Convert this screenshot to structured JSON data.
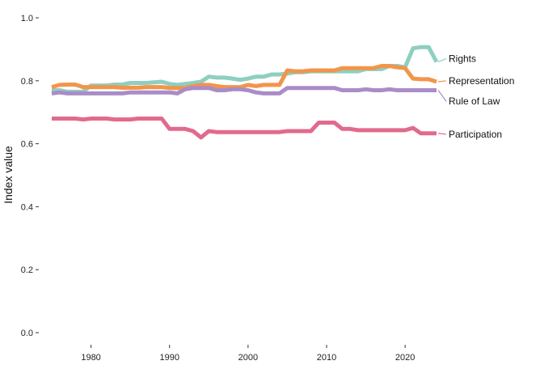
{
  "chart_data": {
    "type": "line",
    "ylabel": "Index value",
    "xlabel": "",
    "xlim": [
      1975,
      2024
    ],
    "ylim": [
      0,
      1
    ],
    "x_ticks": [
      1980,
      1990,
      2000,
      2010,
      2020
    ],
    "x_tick_labels": [
      "1980",
      "1990",
      "2000",
      "2010",
      "2020"
    ],
    "y_ticks": [
      0,
      0.2,
      0.4,
      0.6,
      0.8,
      1.0
    ],
    "y_tick_labels": [
      "0.0",
      "0.2",
      "0.4",
      "0.6",
      "0.8",
      "1.0"
    ],
    "grid": false,
    "legend": "direct labels at line ends (right)",
    "x": [
      1975,
      1976,
      1977,
      1978,
      1979,
      1980,
      1981,
      1982,
      1983,
      1984,
      1985,
      1986,
      1987,
      1988,
      1989,
      1990,
      1991,
      1992,
      1993,
      1994,
      1995,
      1996,
      1997,
      1998,
      1999,
      2000,
      2001,
      2002,
      2003,
      2004,
      2005,
      2006,
      2007,
      2008,
      2009,
      2010,
      2011,
      2012,
      2013,
      2014,
      2015,
      2016,
      2017,
      2018,
      2019,
      2020,
      2021,
      2022,
      2023,
      2024
    ],
    "series": [
      {
        "name": "Rights",
        "color": "#8ecfc0",
        "values": [
          0.77,
          0.77,
          0.765,
          0.765,
          0.765,
          0.785,
          0.785,
          0.785,
          0.788,
          0.788,
          0.793,
          0.793,
          0.793,
          0.795,
          0.797,
          0.79,
          0.787,
          0.79,
          0.793,
          0.797,
          0.813,
          0.81,
          0.81,
          0.807,
          0.803,
          0.807,
          0.813,
          0.813,
          0.82,
          0.82,
          0.823,
          0.827,
          0.827,
          0.83,
          0.83,
          0.83,
          0.83,
          0.83,
          0.83,
          0.83,
          0.837,
          0.837,
          0.837,
          0.847,
          0.847,
          0.843,
          0.903,
          0.907,
          0.907,
          0.86
        ]
      },
      {
        "name": "Representation",
        "color": "#f2954a",
        "values": [
          0.78,
          0.787,
          0.788,
          0.788,
          0.78,
          0.78,
          0.78,
          0.78,
          0.78,
          0.778,
          0.778,
          0.778,
          0.78,
          0.78,
          0.78,
          0.777,
          0.777,
          0.777,
          0.783,
          0.787,
          0.787,
          0.783,
          0.78,
          0.78,
          0.78,
          0.787,
          0.783,
          0.787,
          0.787,
          0.787,
          0.833,
          0.83,
          0.83,
          0.833,
          0.833,
          0.833,
          0.833,
          0.84,
          0.84,
          0.84,
          0.84,
          0.84,
          0.847,
          0.847,
          0.843,
          0.84,
          0.807,
          0.805,
          0.805,
          0.797
        ]
      },
      {
        "name": "Rule of Law",
        "color": "#a98cc8",
        "values": [
          0.76,
          0.763,
          0.76,
          0.76,
          0.76,
          0.76,
          0.76,
          0.76,
          0.76,
          0.76,
          0.763,
          0.763,
          0.763,
          0.763,
          0.763,
          0.763,
          0.76,
          0.773,
          0.777,
          0.777,
          0.777,
          0.77,
          0.77,
          0.773,
          0.773,
          0.77,
          0.763,
          0.76,
          0.76,
          0.76,
          0.777,
          0.777,
          0.777,
          0.777,
          0.777,
          0.777,
          0.777,
          0.77,
          0.77,
          0.77,
          0.773,
          0.77,
          0.77,
          0.773,
          0.77,
          0.77,
          0.77,
          0.77,
          0.77,
          0.77
        ]
      },
      {
        "name": "Participation",
        "color": "#e16a8d",
        "values": [
          0.68,
          0.68,
          0.68,
          0.68,
          0.677,
          0.68,
          0.68,
          0.68,
          0.677,
          0.677,
          0.677,
          0.68,
          0.68,
          0.68,
          0.68,
          0.647,
          0.647,
          0.647,
          0.64,
          0.62,
          0.64,
          0.637,
          0.637,
          0.637,
          0.637,
          0.637,
          0.637,
          0.637,
          0.637,
          0.637,
          0.64,
          0.64,
          0.64,
          0.64,
          0.667,
          0.667,
          0.667,
          0.647,
          0.647,
          0.643,
          0.643,
          0.643,
          0.643,
          0.643,
          0.643,
          0.643,
          0.65,
          0.633,
          0.633,
          0.633
        ]
      }
    ]
  }
}
